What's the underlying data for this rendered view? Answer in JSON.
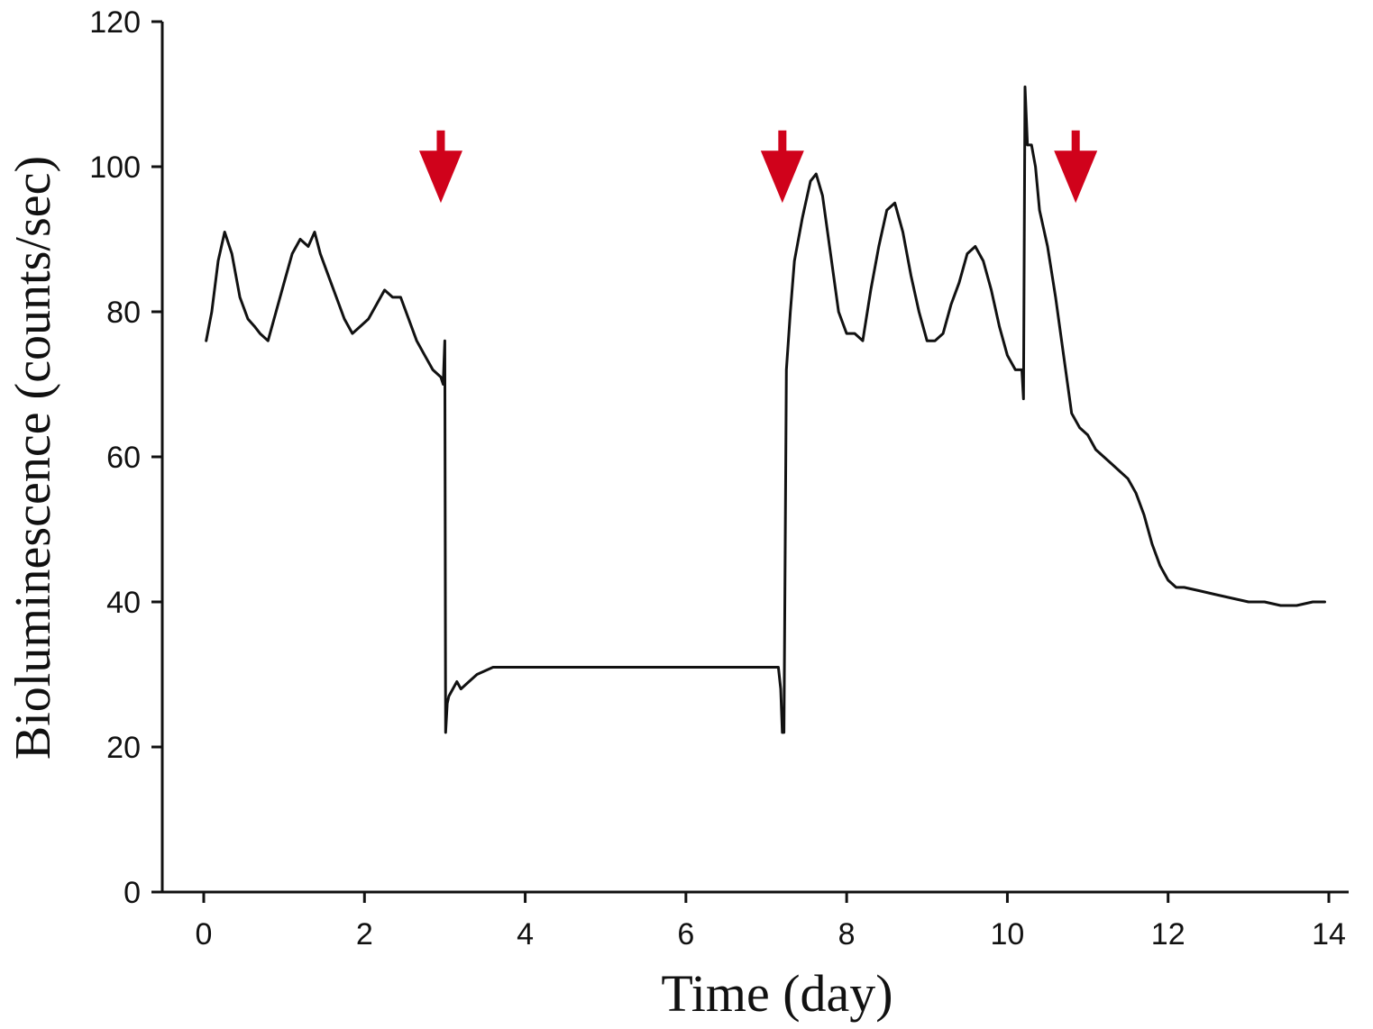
{
  "chart_data": {
    "type": "line",
    "xlabel": "Time (day)",
    "ylabel": "Bioluminescence (counts/sec)",
    "xlim": [
      0,
      14
    ],
    "ylim": [
      0,
      120
    ],
    "x_ticks": [
      "0",
      "2",
      "4",
      "6",
      "8",
      "10",
      "12",
      "14"
    ],
    "y_ticks": [
      "0",
      "20",
      "40",
      "60",
      "80",
      "100",
      "120"
    ],
    "grid": false,
    "legend": "none",
    "colors": {
      "line": "#111111",
      "arrow": "#d0021b",
      "axis": "#111111"
    },
    "series": [
      {
        "x": [
          0.03,
          0.1,
          0.18,
          0.26,
          0.35,
          0.45,
          0.55,
          0.63,
          0.7,
          0.8,
          0.9,
          1.0,
          1.1,
          1.2,
          1.3,
          1.38,
          1.45,
          1.55,
          1.65,
          1.75,
          1.85,
          1.95,
          2.05,
          2.15,
          2.25,
          2.35,
          2.45,
          2.55,
          2.65,
          2.75,
          2.85,
          2.95,
          2.98,
          3.0,
          3.01,
          3.03,
          3.05,
          3.1,
          3.15,
          3.2,
          3.3,
          3.4,
          3.5,
          3.6,
          3.7,
          4.0,
          4.5,
          5.0,
          5.5,
          6.0,
          6.5,
          7.0,
          7.1,
          7.15,
          7.18,
          7.2,
          7.22,
          7.25,
          7.3,
          7.35,
          7.45,
          7.55,
          7.62,
          7.7,
          7.8,
          7.9,
          8.0,
          8.1,
          8.2,
          8.3,
          8.4,
          8.5,
          8.6,
          8.7,
          8.8,
          8.9,
          9.0,
          9.1,
          9.2,
          9.3,
          9.4,
          9.5,
          9.6,
          9.7,
          9.8,
          9.9,
          10.0,
          10.1,
          10.18,
          10.2,
          10.22,
          10.25,
          10.3,
          10.35,
          10.4,
          10.5,
          10.6,
          10.7,
          10.8,
          10.9,
          11.0,
          11.1,
          11.2,
          11.3,
          11.4,
          11.5,
          11.6,
          11.7,
          11.8,
          11.9,
          12.0,
          12.1,
          12.2,
          12.4,
          12.6,
          12.8,
          13.0,
          13.2,
          13.4,
          13.6,
          13.8,
          13.95
        ],
        "y": [
          76,
          80,
          87,
          91,
          88,
          82,
          79,
          78,
          77,
          76,
          80,
          84,
          88,
          90,
          89,
          91,
          88,
          85,
          82,
          79,
          77,
          78,
          79,
          81,
          83,
          82,
          82,
          79,
          76,
          74,
          72,
          71,
          70,
          76,
          22,
          26,
          27,
          28,
          29,
          28,
          29,
          30,
          30.5,
          31,
          31,
          31,
          31,
          31,
          31,
          31,
          31,
          31,
          31,
          31,
          28,
          22,
          22,
          72,
          80,
          87,
          93,
          98,
          99,
          96,
          88,
          80,
          77,
          77,
          76,
          83,
          89,
          94,
          95,
          91,
          85,
          80,
          76,
          76,
          77,
          81,
          84,
          88,
          89,
          87,
          83,
          78,
          74,
          72,
          72,
          68,
          111,
          103,
          103,
          100,
          94,
          89,
          82,
          74,
          66,
          64,
          63,
          61,
          60,
          59,
          58,
          57,
          55,
          52,
          48,
          45,
          43,
          42,
          42,
          41.5,
          41,
          40.5,
          40,
          40,
          39.5,
          39.5,
          40,
          40
        ]
      }
    ],
    "annotations": [
      {
        "type": "arrow-down",
        "x": 2.95,
        "y_top": 105,
        "y_tip": 95
      },
      {
        "type": "arrow-down",
        "x": 7.2,
        "y_top": 105,
        "y_tip": 95
      },
      {
        "type": "arrow-down",
        "x": 10.85,
        "y_top": 105,
        "y_tip": 95
      }
    ]
  }
}
